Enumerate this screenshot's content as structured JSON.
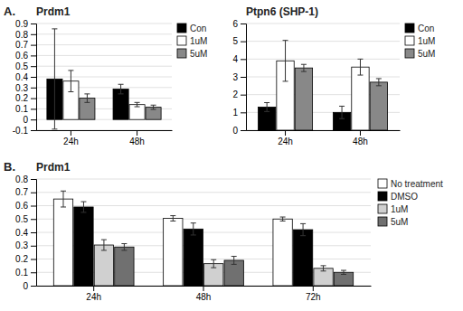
{
  "chart_data": [
    {
      "type": "bar",
      "title": "Prdm1",
      "annotations": [
        "A."
      ],
      "categories": [
        "24h",
        "48h"
      ],
      "series": [
        {
          "name": "Con",
          "color": "#000000",
          "values": [
            0.38,
            0.285
          ],
          "errors": [
            0.47,
            0.045
          ]
        },
        {
          "name": "1uM",
          "color": "#ffffff",
          "values": [
            0.36,
            0.14
          ],
          "errors": [
            0.1,
            0.02
          ]
        },
        {
          "name": "5uM",
          "color": "#888888",
          "values": [
            0.2,
            0.115
          ],
          "errors": [
            0.04,
            0.02
          ]
        }
      ],
      "ylim": [
        -0.1,
        0.9
      ],
      "yticks": [
        -0.1,
        0,
        0.1,
        0.2,
        0.3,
        0.4,
        0.5,
        0.6,
        0.7,
        0.8,
        0.9
      ],
      "grid": true,
      "legend": "top-right"
    },
    {
      "type": "bar",
      "title": "Ptpn6 (SHP-1)",
      "categories": [
        "24h",
        "48h"
      ],
      "series": [
        {
          "name": "Con",
          "color": "#000000",
          "values": [
            1.3,
            1.0
          ],
          "errors": [
            0.25,
            0.35
          ]
        },
        {
          "name": "1uM",
          "color": "#ffffff",
          "values": [
            3.9,
            3.55
          ],
          "errors": [
            1.15,
            0.45
          ]
        },
        {
          "name": "5uM",
          "color": "#888888",
          "values": [
            3.5,
            2.7
          ],
          "errors": [
            0.2,
            0.2
          ]
        }
      ],
      "ylim": [
        0,
        6
      ],
      "yticks": [
        0,
        1,
        2,
        3,
        4,
        5,
        6
      ],
      "grid": true,
      "legend": "top-right"
    },
    {
      "type": "bar",
      "title": "Prdm1",
      "annotations": [
        "B."
      ],
      "categories": [
        "24h",
        "48h",
        "72h"
      ],
      "series": [
        {
          "name": "No treatment",
          "color": "#ffffff",
          "values": [
            0.65,
            0.505,
            0.5
          ],
          "errors": [
            0.06,
            0.02,
            0.015
          ]
        },
        {
          "name": "DMSO",
          "color": "#000000",
          "values": [
            0.59,
            0.425,
            0.42
          ],
          "errors": [
            0.04,
            0.045,
            0.045
          ]
        },
        {
          "name": "1uM",
          "color": "#d0d0d0",
          "values": [
            0.305,
            0.165,
            0.13
          ],
          "errors": [
            0.04,
            0.03,
            0.02
          ]
        },
        {
          "name": "5uM",
          "color": "#707070",
          "values": [
            0.29,
            0.19,
            0.1
          ],
          "errors": [
            0.025,
            0.03,
            0.015
          ]
        }
      ],
      "ylim": [
        0,
        0.8
      ],
      "yticks": [
        0,
        0.1,
        0.2,
        0.3,
        0.4,
        0.5,
        0.6,
        0.7,
        0.8
      ],
      "grid": true,
      "legend": "top-right"
    }
  ]
}
